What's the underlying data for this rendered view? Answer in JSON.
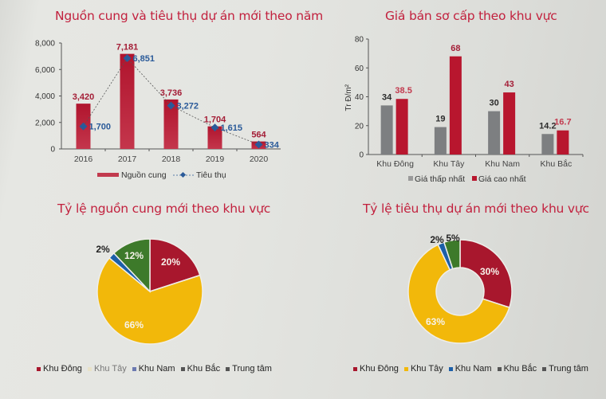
{
  "colors": {
    "title": "#c2213e",
    "supply_bar": "#b2182f",
    "consumption_line": "#2a5a99",
    "gray_bar": "#7d7f81",
    "red_bar": "#b8162e",
    "east": "#a8172d",
    "west": "#f2b80a",
    "south": "#1c5fa8",
    "north": "#3d7a2a",
    "center": "#5a5a5a"
  },
  "chart_data": [
    {
      "id": "supply-consumption",
      "type": "bar",
      "title": "Nguồn cung và tiêu thụ dự án mới theo năm",
      "categories": [
        "2016",
        "2017",
        "2018",
        "2019",
        "2020"
      ],
      "series": [
        {
          "name": "Nguồn cung",
          "type": "bar",
          "values": [
            3420,
            7181,
            3736,
            1704,
            564
          ],
          "labels": [
            "3,420",
            "7,181",
            "3,736",
            "1,704",
            "564"
          ]
        },
        {
          "name": "Tiêu thụ",
          "type": "line",
          "values": [
            1700,
            6851,
            3272,
            1615,
            334
          ],
          "labels": [
            "1,700",
            "6,851",
            "3,272",
            "1,615",
            "334"
          ]
        }
      ],
      "yticks": [
        "0",
        "2,000",
        "4,000",
        "6,000",
        "8,000"
      ],
      "ylim": [
        0,
        8000
      ],
      "xlabel": "",
      "ylabel": "",
      "legend": [
        "Nguồn cung",
        "Tiêu thụ"
      ],
      "legend_position": "bottom",
      "grid": false
    },
    {
      "id": "primary-price",
      "type": "bar",
      "title": "Giá bán sơ cấp theo khu vực",
      "categories": [
        "Khu Đông",
        "Khu Tây",
        "Khu Nam",
        "Khu Bắc"
      ],
      "series": [
        {
          "name": "Giá thấp nhất",
          "values": [
            34,
            19,
            30,
            14.2
          ],
          "labels": [
            "34",
            "19",
            "30",
            "14.2"
          ]
        },
        {
          "name": "Giá cao nhất",
          "values": [
            38.5,
            68,
            43,
            16.7
          ],
          "labels": [
            "38.5",
            "68",
            "43",
            "16.7"
          ]
        }
      ],
      "yticks": [
        "0",
        "20",
        "40",
        "60",
        "80"
      ],
      "ylim": [
        0,
        80
      ],
      "xlabel": "",
      "ylabel": "Tr Đ/m²",
      "legend": [
        "Giá thấp nhất",
        "Giá cao nhất"
      ],
      "legend_position": "bottom",
      "grid": false
    },
    {
      "id": "new-supply-share",
      "type": "pie",
      "title": "Tỷ lệ nguồn cung mới theo khu vực",
      "categories": [
        "Khu Đông",
        "Khu Tây",
        "Khu Nam",
        "Khu Bắc",
        "Trung tâm"
      ],
      "values": [
        20,
        66,
        2,
        12,
        0
      ],
      "labels": [
        "20%",
        "66%",
        "2%",
        "12%",
        ""
      ],
      "legend": [
        "Khu Đông",
        "Khu Tây",
        "Khu Nam",
        "Khu Bắc",
        "Trung tâm"
      ],
      "legend_position": "bottom"
    },
    {
      "id": "consumption-share",
      "type": "pie",
      "donut": true,
      "title": "Tỷ lệ tiêu thụ dự án mới theo khu vực",
      "categories": [
        "Khu Đông",
        "Khu Tây",
        "Khu Nam",
        "Khu Bắc",
        "Trung tâm"
      ],
      "values": [
        30,
        63,
        2,
        5,
        0
      ],
      "labels": [
        "30%",
        "63%",
        "2%",
        "5%",
        ""
      ],
      "legend": [
        "Khu Đông",
        "Khu Tây",
        "Khu Nam",
        "Khu Bắc",
        "Trung tâm"
      ],
      "legend_position": "bottom"
    }
  ],
  "legends": {
    "supply_chart": {
      "bar": "Nguồn cung",
      "line": "Tiêu thụ"
    },
    "price_chart": {
      "low": "Giá thấp nhất",
      "high": "Giá cao nhất"
    },
    "regions": [
      "Khu Đông",
      "Khu Tây",
      "Khu Nam",
      "Khu Bắc",
      "Trung tâm"
    ]
  }
}
